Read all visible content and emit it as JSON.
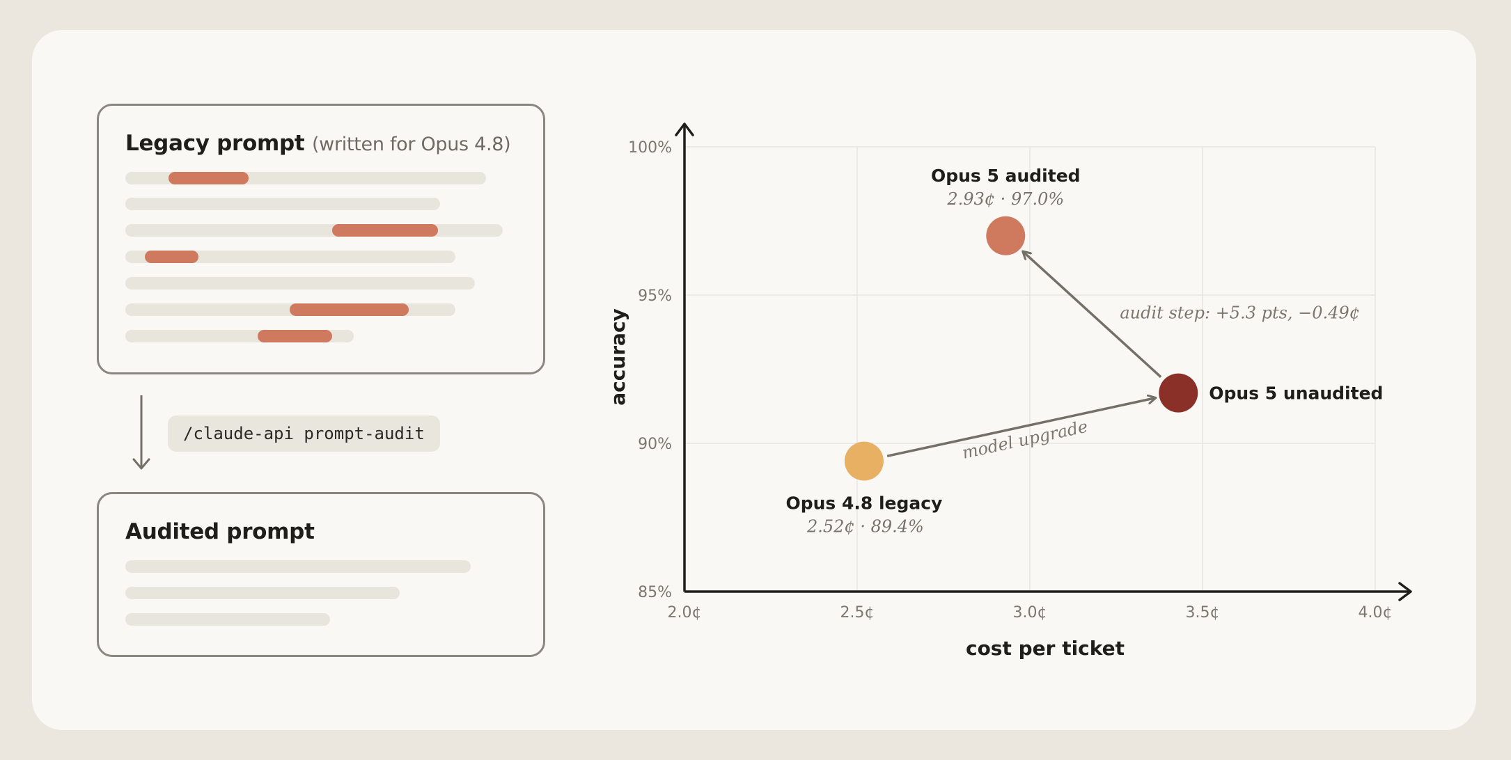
{
  "legacy_panel": {
    "title": "Legacy prompt",
    "subtitle": "(written for Opus 4.8)"
  },
  "command": {
    "label": "/claude-api prompt-audit"
  },
  "audited_panel": {
    "title": "Audited prompt"
  },
  "colors": {
    "highlight": "#cf7a5e",
    "placeholder_line": "#e8e5dd",
    "opus48_legacy": "#e7b062",
    "opus5_audited": "#cf7a5e",
    "opus5_unaudited": "#8b2f29",
    "arrow": "#737068"
  },
  "chart_data": {
    "type": "scatter",
    "xlabel": "cost per ticket",
    "ylabel": "accuracy",
    "xlim": [
      2.0,
      4.0
    ],
    "ylim": [
      85,
      100
    ],
    "x_ticks": [
      {
        "value": 2.0,
        "label": "2.0¢"
      },
      {
        "value": 2.5,
        "label": "2.5¢"
      },
      {
        "value": 3.0,
        "label": "3.0¢"
      },
      {
        "value": 3.5,
        "label": "3.5¢"
      },
      {
        "value": 4.0,
        "label": "4.0¢"
      }
    ],
    "y_ticks": [
      {
        "value": 85,
        "label": "85%"
      },
      {
        "value": 90,
        "label": "90%"
      },
      {
        "value": 95,
        "label": "95%"
      },
      {
        "value": 100,
        "label": "100%"
      }
    ],
    "grid": true,
    "points": [
      {
        "name": "Opus 4.8 legacy",
        "x": 2.52,
        "y": 89.4,
        "value_label": "2.52¢ · 89.4%",
        "color": "#e7b062"
      },
      {
        "name": "Opus 5 audited",
        "x": 2.93,
        "y": 97.0,
        "value_label": "2.93¢ · 97.0%",
        "color": "#cf7a5e"
      },
      {
        "name": "Opus 5 unaudited",
        "x": 3.43,
        "y": 91.7,
        "value_label": "",
        "color": "#8b2f29"
      }
    ],
    "arrows": [
      {
        "from": "Opus 4.8 legacy",
        "to": "Opus 5 unaudited",
        "label": "model upgrade"
      },
      {
        "from": "Opus 5 unaudited",
        "to": "Opus 5 audited",
        "label": "audit step: +5.3 pts, −0.49¢"
      }
    ]
  }
}
